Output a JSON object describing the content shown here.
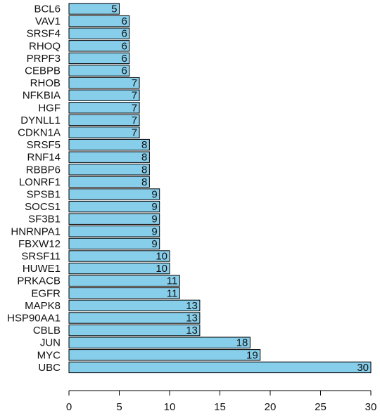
{
  "chart_data": {
    "type": "bar",
    "orientation": "horizontal",
    "title": "",
    "xlabel": "",
    "ylabel": "",
    "xlim": [
      0,
      30
    ],
    "x_ticks": [
      0,
      5,
      10,
      15,
      20,
      25,
      30
    ],
    "grid": false,
    "legend": "none",
    "bar_color": "#87ceeb",
    "bar_edge_color": "#000000",
    "categories": [
      "BCL6",
      "VAV1",
      "SRSF4",
      "RHOQ",
      "PRPF3",
      "CEBPB",
      "RHOB",
      "NFKBIA",
      "HGF",
      "DYNLL1",
      "CDKN1A",
      "SRSF5",
      "RNF14",
      "RBBP6",
      "LONRF1",
      "SPSB1",
      "SOCS1",
      "SF3B1",
      "HNRNPA1",
      "FBXW12",
      "SRSF11",
      "HUWE1",
      "PRKACB",
      "EGFR",
      "MAPK8",
      "HSP90AA1",
      "CBLB",
      "JUN",
      "MYC",
      "UBC"
    ],
    "values": [
      5,
      6,
      6,
      6,
      6,
      6,
      7,
      7,
      7,
      7,
      7,
      8,
      8,
      8,
      8,
      9,
      9,
      9,
      9,
      9,
      10,
      10,
      11,
      11,
      13,
      13,
      13,
      18,
      19,
      30
    ]
  }
}
